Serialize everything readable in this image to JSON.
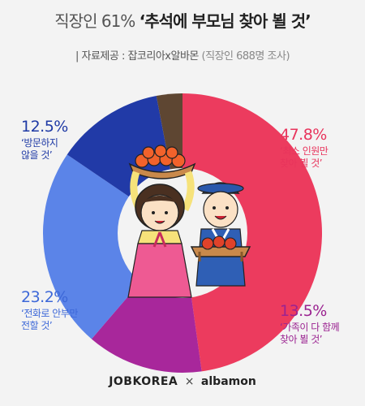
{
  "header": {
    "title_light": "직장인 61%",
    "title_bold": "‘추석에 부모님 찾아 뵐 것’",
    "source_prefix": "| 자료제공 : 잡코리아x알바몬",
    "source_note": "(직장인 688명 조사)"
  },
  "chart_data": {
    "type": "pie",
    "title": "직장인 61% ‘추석에 부모님 찾아 뵐 것’",
    "slices": [
      {
        "name": "최소 인원만 찾아 뵐 것",
        "value": 47.8,
        "label": "47.8%",
        "color": "#ec3b5e"
      },
      {
        "name": "가족이 다 함께 찾아 뵐 것",
        "value": 13.5,
        "label": "13.5%",
        "color": "#a8279b"
      },
      {
        "name": "전화로 안부만 전할 것",
        "value": 23.2,
        "label": "23.2%",
        "color": "#5b84e8"
      },
      {
        "name": "방문하지 않을 것",
        "value": 12.5,
        "label": "12.5%",
        "color": "#213aa7"
      },
      {
        "name": "",
        "value": 3.0,
        "label": "",
        "color": "#5e4632"
      }
    ]
  },
  "labels": {
    "l1_pct": "47.8%",
    "l1_line1": "‘최소 인원만",
    "l1_line2": "찾아 뵐 것’",
    "l2_pct": "13.5%",
    "l2_line1": "‘가족이 다 함께",
    "l2_line2": "찾아 뵐 것’",
    "l3_pct": "23.2%",
    "l3_line1": "‘전화로 안부만",
    "l3_line2": "전할 것’",
    "l4_pct": "12.5%",
    "l4_line1": "‘방문하지",
    "l4_line2": "않을 것’"
  },
  "footer": {
    "brand1": "JOBKOREA",
    "sep": "×",
    "brand2": "albamon"
  }
}
